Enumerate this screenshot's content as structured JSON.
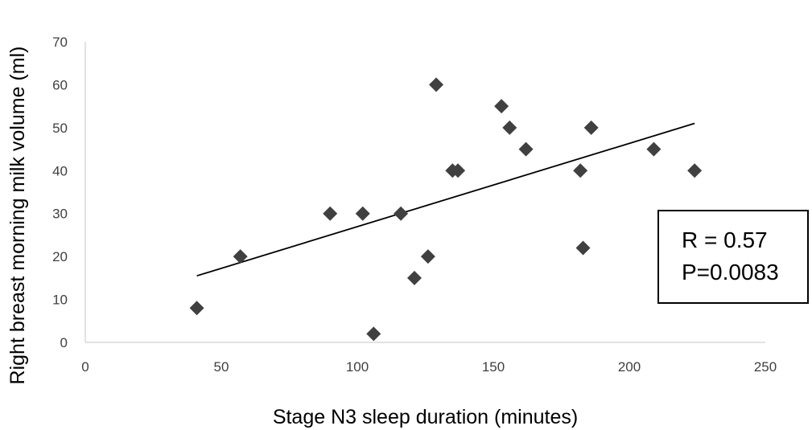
{
  "chart_data": {
    "type": "scatter",
    "title": "",
    "xlabel": "Stage N3 sleep duration (minutes)",
    "ylabel": "Right breast morning milk volume (ml)",
    "xlim": [
      0,
      250
    ],
    "ylim": [
      0,
      70
    ],
    "x_ticks": [
      "0",
      "50",
      "100",
      "150",
      "200",
      "250"
    ],
    "y_ticks": [
      "0",
      "10",
      "20",
      "30",
      "40",
      "50",
      "60",
      "70"
    ],
    "grid": false,
    "legend": "none",
    "marker": "diamond",
    "marker_color": "#404040",
    "points": [
      {
        "x": 41,
        "y": 8
      },
      {
        "x": 57,
        "y": 20
      },
      {
        "x": 90,
        "y": 30
      },
      {
        "x": 102,
        "y": 30
      },
      {
        "x": 106,
        "y": 2
      },
      {
        "x": 116,
        "y": 30
      },
      {
        "x": 121,
        "y": 15
      },
      {
        "x": 126,
        "y": 20
      },
      {
        "x": 129,
        "y": 60
      },
      {
        "x": 135,
        "y": 40
      },
      {
        "x": 137,
        "y": 40
      },
      {
        "x": 153,
        "y": 55
      },
      {
        "x": 156,
        "y": 50
      },
      {
        "x": 162,
        "y": 45
      },
      {
        "x": 182,
        "y": 40
      },
      {
        "x": 183,
        "y": 22
      },
      {
        "x": 186,
        "y": 50
      },
      {
        "x": 209,
        "y": 45
      },
      {
        "x": 224,
        "y": 40
      }
    ],
    "trendline": {
      "x": [
        41,
        224
      ],
      "y": [
        15.5,
        51
      ],
      "color": "#000000"
    },
    "annotation": {
      "lines": [
        "R = 0.57",
        "P=0.0083"
      ]
    }
  }
}
